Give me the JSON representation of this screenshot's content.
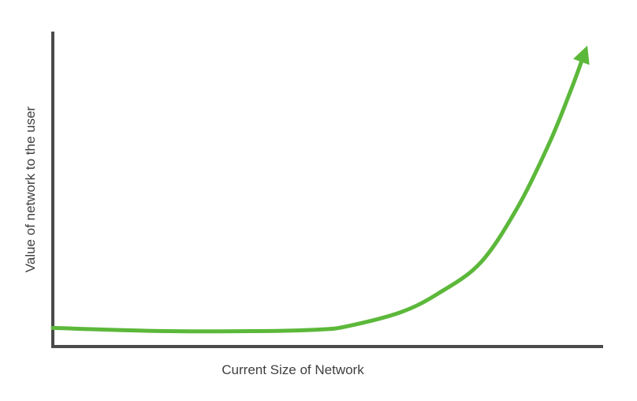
{
  "chart_data": {
    "type": "line",
    "title": "",
    "xlabel": "Current Size of Network",
    "ylabel": "Value of network to the user",
    "xlim": [
      0,
      100
    ],
    "ylim": [
      0,
      100
    ],
    "grid": false,
    "legend": "none",
    "x_ticks": [],
    "y_ticks": [],
    "series": [
      {
        "x": [
          0,
          20,
          40,
          50,
          55,
          65,
          72,
          80,
          87,
          93,
          97,
          100
        ],
        "y": [
          6,
          5,
          5,
          5.5,
          6.5,
          11,
          17,
          27,
          45,
          66,
          83,
          97
        ],
        "end_marker": "arrow"
      }
    ]
  },
  "colors": {
    "line": "#5cb83a",
    "axis": "#4a4a4a",
    "text": "#3f3f3f"
  }
}
